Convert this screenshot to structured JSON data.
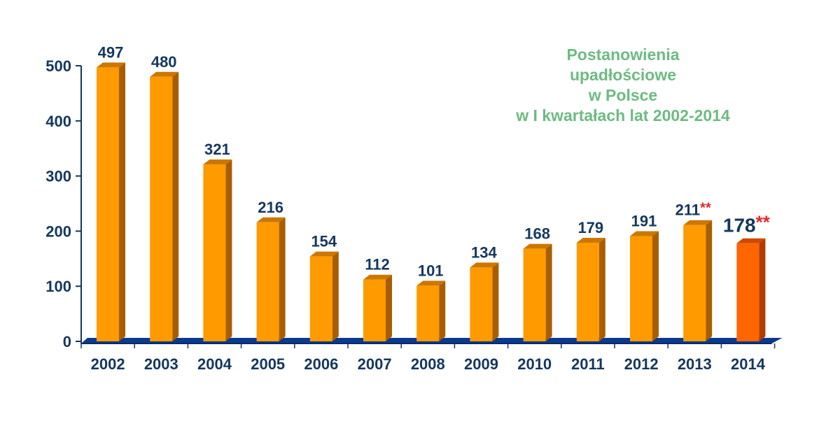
{
  "chart_data": {
    "type": "bar",
    "title_lines": [
      "Postanowienia",
      "upadłościowe",
      "w Polsce",
      "w I kwartałach lat 2002-2014"
    ],
    "categories": [
      "2002",
      "2003",
      "2004",
      "2005",
      "2006",
      "2007",
      "2008",
      "2009",
      "2010",
      "2011",
      "2012",
      "2013",
      "2014"
    ],
    "values": [
      497,
      480,
      321,
      216,
      154,
      112,
      101,
      134,
      168,
      179,
      191,
      211,
      178
    ],
    "data_labels": [
      "497",
      "480",
      "321",
      "216",
      "154",
      "112",
      "101",
      "134",
      "168",
      "179",
      "191",
      "211",
      "178"
    ],
    "footnote_markers": {
      "2013": "**",
      "2014": "**"
    },
    "highlight_category": "2014",
    "y_ticks": [
      "0",
      "100",
      "200",
      "300",
      "400",
      "500"
    ],
    "ylim": [
      0,
      500
    ],
    "grid": false,
    "colors": {
      "bar": "#ff9a00",
      "bar_side": "#a85e00",
      "bar_top": "#cc7700",
      "highlight_bar": "#ff6600",
      "highlight_side": "#b03c00",
      "highlight_top": "#d04800",
      "axis_text": "#14375e",
      "axis_line": "#14375e",
      "floor": "#0a3a8c",
      "title": "#6dbb82",
      "marker": "#e8262b"
    }
  }
}
